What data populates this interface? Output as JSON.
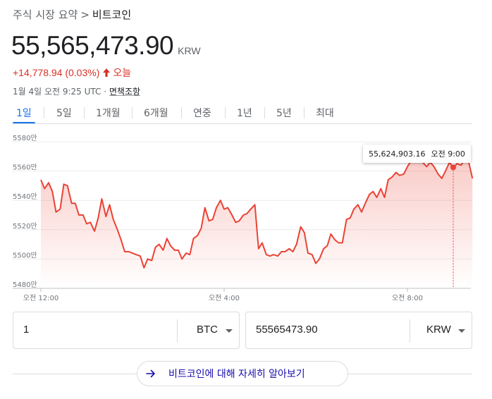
{
  "breadcrumb": {
    "parent": "주식 시장 요약",
    "separator": ">",
    "current": "비트코인"
  },
  "quote": {
    "price": "55,565,473.90",
    "currency": "KRW",
    "change": "+14,778.94 (0.03%)",
    "period": "오늘",
    "timestamp": "1월 4일 오전 9:25 UTC ·",
    "disclaimer": "면책조항"
  },
  "tabs": [
    {
      "label": "1일",
      "active": true
    },
    {
      "label": "5일",
      "active": false
    },
    {
      "label": "1개월",
      "active": false
    },
    {
      "label": "6개월",
      "active": false
    },
    {
      "label": "연중",
      "active": false
    },
    {
      "label": "1년",
      "active": false
    },
    {
      "label": "5년",
      "active": false
    },
    {
      "label": "최대",
      "active": false
    }
  ],
  "tooltip": {
    "value": "55,624,903.16",
    "time": "오전 9:00"
  },
  "chart_data": {
    "type": "area",
    "title": "",
    "xlabel": "",
    "ylabel": "",
    "y_tick_labels": [
      "5580만",
      "5560만",
      "5540만",
      "5520만",
      "5500만",
      "5480만"
    ],
    "y_ticks": [
      5580,
      5560,
      5540,
      5520,
      5500,
      5480
    ],
    "ylim": [
      5480,
      5580
    ],
    "x_tick_labels": [
      "오전 12:00",
      "오전 4:00",
      "오전 8:00"
    ],
    "x_ticks": [
      0,
      4,
      8
    ],
    "xlim": [
      0,
      9.42
    ],
    "y_unit": "만 KRW",
    "line_color": "#ea4335",
    "highlight": {
      "x": 9.0,
      "y": 5562.49
    },
    "points": [
      [
        0.0,
        5554
      ],
      [
        0.08,
        5548
      ],
      [
        0.17,
        5552
      ],
      [
        0.25,
        5546
      ],
      [
        0.33,
        5532
      ],
      [
        0.42,
        5534
      ],
      [
        0.5,
        5551
      ],
      [
        0.58,
        5550
      ],
      [
        0.67,
        5538
      ],
      [
        0.75,
        5538
      ],
      [
        0.83,
        5530
      ],
      [
        0.92,
        5530
      ],
      [
        1.0,
        5524
      ],
      [
        1.08,
        5525
      ],
      [
        1.17,
        5519
      ],
      [
        1.25,
        5528
      ],
      [
        1.33,
        5541
      ],
      [
        1.42,
        5529
      ],
      [
        1.5,
        5537
      ],
      [
        1.58,
        5527
      ],
      [
        1.67,
        5520
      ],
      [
        1.75,
        5513
      ],
      [
        1.83,
        5505
      ],
      [
        1.92,
        5505
      ],
      [
        2.0,
        5504
      ],
      [
        2.08,
        5503
      ],
      [
        2.17,
        5502
      ],
      [
        2.25,
        5494
      ],
      [
        2.33,
        5500
      ],
      [
        2.42,
        5499
      ],
      [
        2.5,
        5508
      ],
      [
        2.58,
        5510
      ],
      [
        2.67,
        5506
      ],
      [
        2.75,
        5514
      ],
      [
        2.83,
        5509
      ],
      [
        2.92,
        5506
      ],
      [
        3.0,
        5506
      ],
      [
        3.08,
        5500
      ],
      [
        3.17,
        5504
      ],
      [
        3.25,
        5503
      ],
      [
        3.33,
        5514
      ],
      [
        3.42,
        5516
      ],
      [
        3.5,
        5521
      ],
      [
        3.58,
        5535
      ],
      [
        3.67,
        5526
      ],
      [
        3.75,
        5527
      ],
      [
        3.83,
        5535
      ],
      [
        3.92,
        5540
      ],
      [
        4.0,
        5534
      ],
      [
        4.08,
        5535
      ],
      [
        4.17,
        5530
      ],
      [
        4.25,
        5525
      ],
      [
        4.33,
        5526
      ],
      [
        4.42,
        5530
      ],
      [
        4.5,
        5531
      ],
      [
        4.58,
        5534
      ],
      [
        4.67,
        5537
      ],
      [
        4.75,
        5507
      ],
      [
        4.83,
        5511
      ],
      [
        4.92,
        5503
      ],
      [
        5.0,
        5502
      ],
      [
        5.08,
        5503
      ],
      [
        5.17,
        5502
      ],
      [
        5.25,
        5505
      ],
      [
        5.33,
        5505
      ],
      [
        5.42,
        5507
      ],
      [
        5.5,
        5505
      ],
      [
        5.58,
        5510
      ],
      [
        5.67,
        5522
      ],
      [
        5.75,
        5518
      ],
      [
        5.83,
        5504
      ],
      [
        5.92,
        5503
      ],
      [
        6.0,
        5497
      ],
      [
        6.08,
        5500
      ],
      [
        6.17,
        5507
      ],
      [
        6.25,
        5509
      ],
      [
        6.33,
        5517
      ],
      [
        6.42,
        5513
      ],
      [
        6.5,
        5511
      ],
      [
        6.58,
        5511
      ],
      [
        6.67,
        5527
      ],
      [
        6.75,
        5528
      ],
      [
        6.83,
        5534
      ],
      [
        6.92,
        5537
      ],
      [
        7.0,
        5532
      ],
      [
        7.08,
        5538
      ],
      [
        7.17,
        5544
      ],
      [
        7.25,
        5546
      ],
      [
        7.33,
        5542
      ],
      [
        7.42,
        5548
      ],
      [
        7.5,
        5542
      ],
      [
        7.58,
        5554
      ],
      [
        7.67,
        5556
      ],
      [
        7.75,
        5559
      ],
      [
        7.83,
        5557
      ],
      [
        7.92,
        5558
      ],
      [
        8.0,
        5563
      ],
      [
        8.08,
        5567
      ],
      [
        8.17,
        5570
      ],
      [
        8.25,
        5569
      ],
      [
        8.33,
        5566
      ],
      [
        8.42,
        5563
      ],
      [
        8.5,
        5566
      ],
      [
        8.58,
        5563
      ],
      [
        8.67,
        5558
      ],
      [
        8.75,
        5555
      ],
      [
        8.83,
        5560
      ],
      [
        8.92,
        5566
      ],
      [
        9.0,
        5562
      ],
      [
        9.08,
        5565
      ],
      [
        9.17,
        5564
      ],
      [
        9.25,
        5568
      ],
      [
        9.33,
        5567
      ],
      [
        9.42,
        5555
      ]
    ]
  },
  "converter": {
    "from_value": "1",
    "from_unit": "BTC",
    "to_value": "55565473.90",
    "to_unit": "KRW"
  },
  "more_button": {
    "label": "비트코인에 대해 자세히 알아보기"
  }
}
